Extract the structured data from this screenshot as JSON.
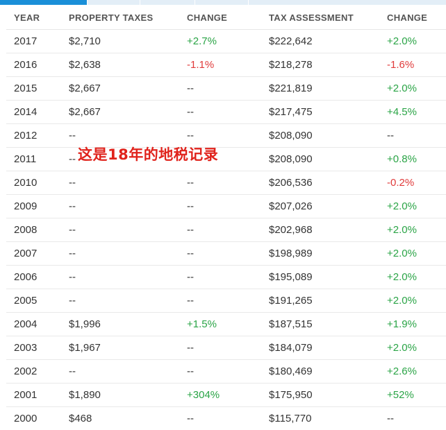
{
  "table": {
    "headers": {
      "year": "YEAR",
      "property_taxes": "PROPERTY TAXES",
      "tax_change": "CHANGE",
      "tax_assessment": "TAX ASSESSMENT",
      "assessment_change": "CHANGE"
    },
    "rows": [
      {
        "year": "2017",
        "property_taxes": "$2,710",
        "tax_change": "+2.7%",
        "tax_assessment": "$222,642",
        "assessment_change": "+2.0%"
      },
      {
        "year": "2016",
        "property_taxes": "$2,638",
        "tax_change": "-1.1%",
        "tax_assessment": "$218,278",
        "assessment_change": "-1.6%"
      },
      {
        "year": "2015",
        "property_taxes": "$2,667",
        "tax_change": "--",
        "tax_assessment": "$221,819",
        "assessment_change": "+2.0%"
      },
      {
        "year": "2014",
        "property_taxes": "$2,667",
        "tax_change": "--",
        "tax_assessment": "$217,475",
        "assessment_change": "+4.5%"
      },
      {
        "year": "2012",
        "property_taxes": "--",
        "tax_change": "--",
        "tax_assessment": "$208,090",
        "assessment_change": "--"
      },
      {
        "year": "2011",
        "property_taxes": "--",
        "tax_change": "",
        "tax_assessment": "$208,090",
        "assessment_change": "+0.8%"
      },
      {
        "year": "2010",
        "property_taxes": "--",
        "tax_change": "--",
        "tax_assessment": "$206,536",
        "assessment_change": "-0.2%"
      },
      {
        "year": "2009",
        "property_taxes": "--",
        "tax_change": "--",
        "tax_assessment": "$207,026",
        "assessment_change": "+2.0%"
      },
      {
        "year": "2008",
        "property_taxes": "--",
        "tax_change": "--",
        "tax_assessment": "$202,968",
        "assessment_change": "+2.0%"
      },
      {
        "year": "2007",
        "property_taxes": "--",
        "tax_change": "--",
        "tax_assessment": "$198,989",
        "assessment_change": "+2.0%"
      },
      {
        "year": "2006",
        "property_taxes": "--",
        "tax_change": "--",
        "tax_assessment": "$195,089",
        "assessment_change": "+2.0%"
      },
      {
        "year": "2005",
        "property_taxes": "--",
        "tax_change": "--",
        "tax_assessment": "$191,265",
        "assessment_change": "+2.0%"
      },
      {
        "year": "2004",
        "property_taxes": "$1,996",
        "tax_change": "+1.5%",
        "tax_assessment": "$187,515",
        "assessment_change": "+1.9%"
      },
      {
        "year": "2003",
        "property_taxes": "$1,967",
        "tax_change": "--",
        "tax_assessment": "$184,079",
        "assessment_change": "+2.0%"
      },
      {
        "year": "2002",
        "property_taxes": "--",
        "tax_change": "--",
        "tax_assessment": "$180,469",
        "assessment_change": "+2.6%"
      },
      {
        "year": "2001",
        "property_taxes": "$1,890",
        "tax_change": "+304%",
        "tax_assessment": "$175,950",
        "assessment_change": "+52%"
      },
      {
        "year": "2000",
        "property_taxes": "$468",
        "tax_change": "--",
        "tax_assessment": "$115,770",
        "assessment_change": "--"
      }
    ]
  },
  "annotation": {
    "text": "这是18年的地税记录"
  },
  "colors": {
    "positive": "#2aa446",
    "negative": "#e03a3a",
    "annotation": "#e0231c",
    "tab_active": "#1a8fd8",
    "tab_inactive": "#e3eef7"
  }
}
